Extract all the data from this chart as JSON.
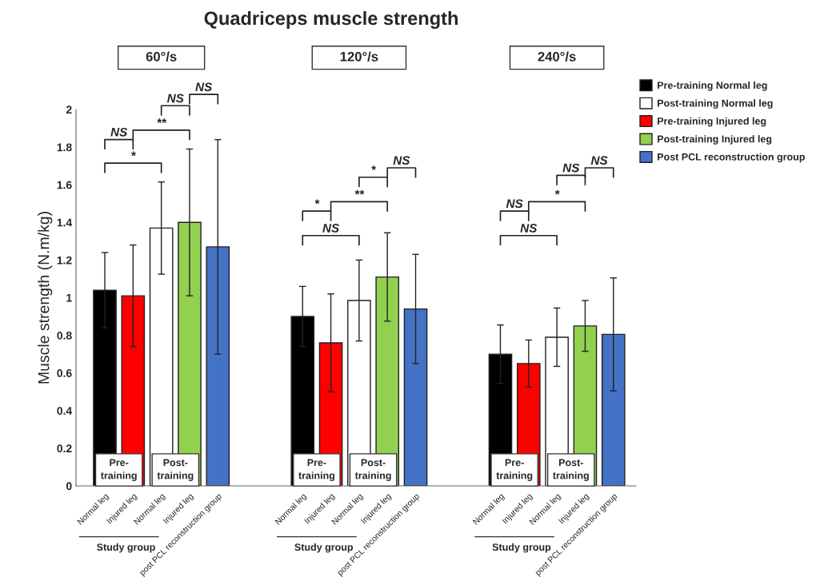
{
  "chart_data": {
    "type": "bar",
    "title": "Quadriceps muscle strength",
    "ylabel": "Muscle strength (N.m/kg)",
    "categories": [
      "Normal leg",
      "Injured leg",
      "Normal leg",
      "Injured leg",
      "post PCL reconstruction group",
      null,
      null,
      "Normal leg",
      "Injured leg",
      "Normal leg",
      "Injured leg",
      "post PCL reconstruction group",
      null,
      null,
      "Normal leg",
      "Injured leg",
      "Normal leg",
      "Injured leg",
      "post PCL reconstruction group"
    ],
    "series": [
      {
        "name": "Pre-training Normal leg",
        "color": "#000000",
        "values": [
          1.04,
          null,
          null,
          null,
          null,
          null,
          null,
          0.9,
          null,
          null,
          null,
          null,
          null,
          null,
          0.7,
          null,
          null,
          null,
          null
        ],
        "errors": [
          0.2,
          null,
          null,
          null,
          null,
          null,
          null,
          0.16,
          null,
          null,
          null,
          null,
          null,
          null,
          0.155,
          null,
          null,
          null,
          null
        ]
      },
      {
        "name": "Post-training Normal leg",
        "color": "#ffffff",
        "values": [
          null,
          null,
          1.37,
          null,
          null,
          null,
          null,
          null,
          null,
          0.985,
          null,
          null,
          null,
          null,
          null,
          null,
          0.79,
          null,
          null
        ],
        "errors": [
          null,
          null,
          0.245,
          null,
          null,
          null,
          null,
          null,
          null,
          0.215,
          null,
          null,
          null,
          null,
          null,
          null,
          0.155,
          null,
          null
        ]
      },
      {
        "name": "Pre-training Injured leg",
        "color": "#ff0000",
        "values": [
          null,
          1.01,
          null,
          null,
          null,
          null,
          null,
          null,
          0.76,
          null,
          null,
          null,
          null,
          null,
          null,
          0.65,
          null,
          null,
          null
        ],
        "errors": [
          null,
          0.27,
          null,
          null,
          null,
          null,
          null,
          null,
          0.26,
          null,
          null,
          null,
          null,
          null,
          null,
          0.125,
          null,
          null,
          null
        ]
      },
      {
        "name": "Post-training Injured leg",
        "color": "#92d050",
        "values": [
          null,
          null,
          null,
          1.4,
          null,
          null,
          null,
          null,
          null,
          null,
          1.11,
          null,
          null,
          null,
          null,
          null,
          null,
          0.85,
          null
        ],
        "errors": [
          null,
          null,
          null,
          0.39,
          null,
          null,
          null,
          null,
          null,
          null,
          0.235,
          null,
          null,
          null,
          null,
          null,
          null,
          0.135,
          null
        ]
      },
      {
        "name": "Post PCL reconstruction group",
        "color": "#4472c4",
        "values": [
          null,
          null,
          null,
          null,
          1.27,
          null,
          null,
          null,
          null,
          null,
          null,
          0.94,
          null,
          null,
          null,
          null,
          null,
          null,
          0.805
        ],
        "errors": [
          null,
          null,
          null,
          null,
          0.57,
          null,
          null,
          null,
          null,
          null,
          null,
          0.29,
          null,
          null,
          null,
          null,
          null,
          null,
          0.3
        ]
      }
    ],
    "ylim": [
      0,
      2
    ],
    "yticks": [
      0,
      0.2,
      0.4,
      0.6,
      0.8,
      1,
      1.2,
      1.4,
      1.6,
      1.8,
      2
    ],
    "grid": false,
    "legend": "right",
    "annotations": [
      "60°/s",
      "120°/s",
      "240°/s",
      "Pre-\ntraining",
      "Post-\ntraining",
      "Pre-\ntraining",
      "Post-\ntraining",
      "Pre-\ntraining",
      "Post-\ntraining",
      "Study group",
      "Study group",
      "Study group",
      "*",
      "NS",
      "**",
      "NS",
      "NS",
      "NS",
      "*",
      "**",
      "*",
      "NS",
      "NS",
      "NS",
      "*",
      "NS",
      "NS"
    ]
  }
}
